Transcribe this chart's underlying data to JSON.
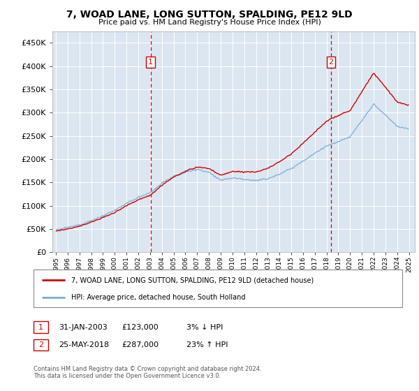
{
  "title": "7, WOAD LANE, LONG SUTTON, SPALDING, PE12 9LD",
  "subtitle": "Price paid vs. HM Land Registry's House Price Index (HPI)",
  "background_color": "#dce6f1",
  "sale1_value": 123000,
  "sale1_label": "31-JAN-2003",
  "sale1_hpi_diff": "3% ↓ HPI",
  "sale2_value": 287000,
  "sale2_label": "25-MAY-2018",
  "sale2_hpi_diff": "23% ↑ HPI",
  "hpi_line_color": "#7aadd4",
  "price_line_color": "#cc0000",
  "legend_label_price": "7, WOAD LANE, LONG SUTTON, SPALDING, PE12 9LD (detached house)",
  "legend_label_hpi": "HPI: Average price, detached house, South Holland",
  "footer": "Contains HM Land Registry data © Crown copyright and database right 2024.\nThis data is licensed under the Open Government Licence v3.0.",
  "ylim": [
    0,
    475000
  ],
  "yticks": [
    0,
    50000,
    100000,
    150000,
    200000,
    250000,
    300000,
    350000,
    400000,
    450000
  ],
  "sale1_month": 2003.04,
  "sale2_month": 2018.37,
  "hpi_base_x": [
    1995,
    1996,
    1997,
    1998,
    1999,
    2000,
    2001,
    2002,
    2003,
    2004,
    2005,
    2006,
    2007,
    2008,
    2009,
    2010,
    2011,
    2012,
    2013,
    2014,
    2015,
    2016,
    2017,
    2018,
    2019,
    2020,
    2021,
    2022,
    2023,
    2024,
    2025
  ],
  "hpi_base_y": [
    48000,
    53000,
    59000,
    68000,
    78000,
    90000,
    105000,
    118000,
    128000,
    148000,
    163000,
    172000,
    178000,
    172000,
    155000,
    160000,
    157000,
    154000,
    158000,
    168000,
    180000,
    196000,
    213000,
    228000,
    238000,
    248000,
    283000,
    318000,
    295000,
    270000,
    265000
  ]
}
